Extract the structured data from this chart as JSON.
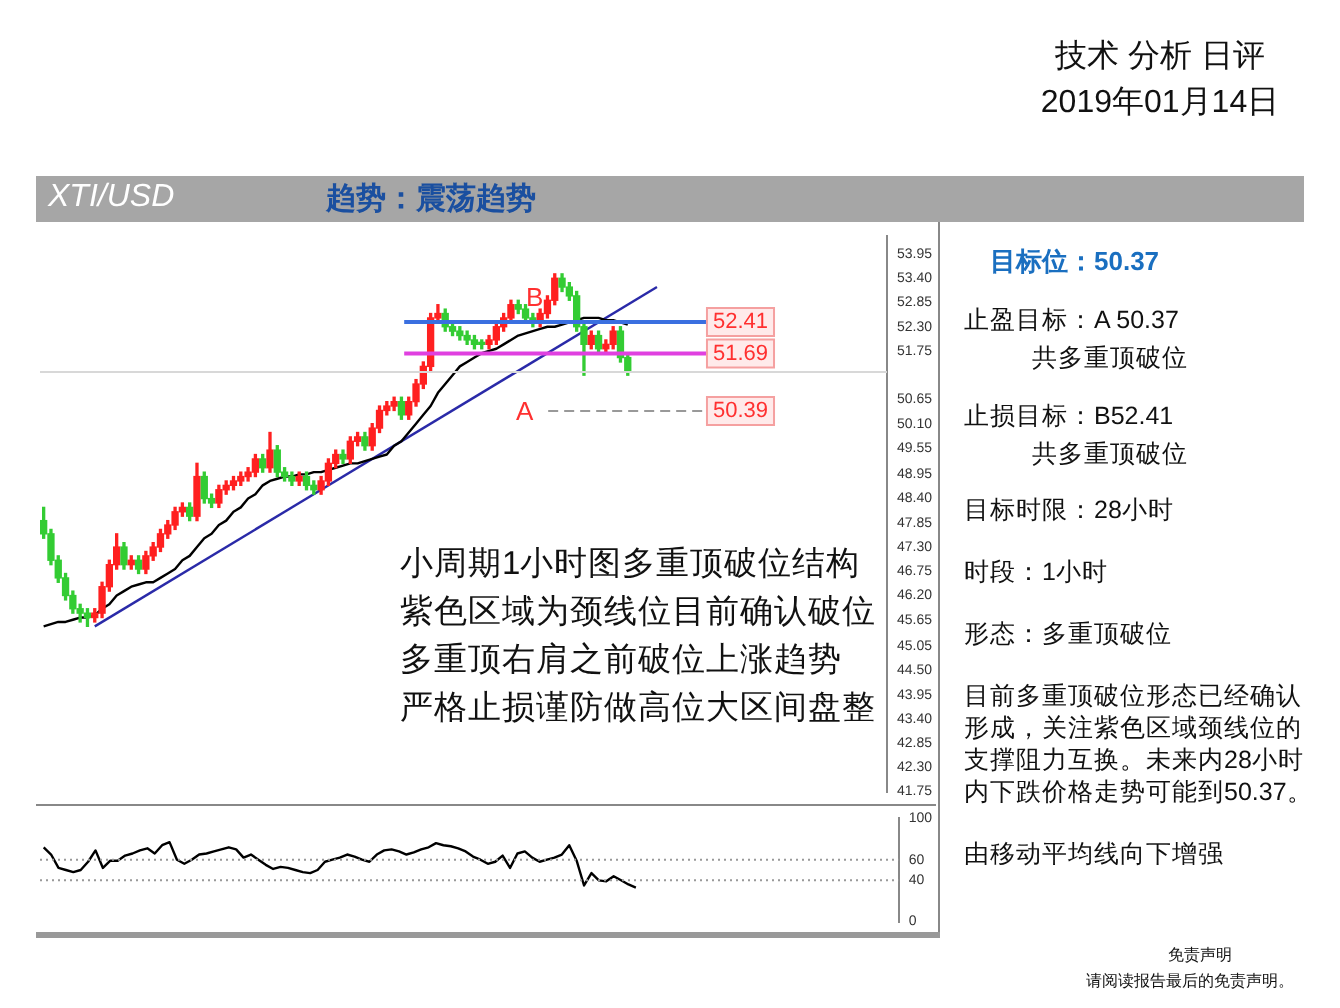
{
  "chart_data": [
    {
      "type": "candlestick",
      "title": "XTI/USD",
      "subtitle": "趋势：震荡趋势",
      "categories": [
        null,
        null,
        null,
        null,
        null,
        null,
        null,
        null,
        null,
        null,
        null,
        null,
        null,
        null,
        null,
        null,
        null,
        null,
        null,
        null,
        null,
        null,
        null,
        null,
        null,
        null,
        null,
        null,
        null,
        null,
        null,
        null,
        null,
        null,
        null,
        null,
        null,
        null,
        null,
        null,
        null,
        null,
        null,
        null,
        null,
        null,
        null,
        null,
        null,
        null,
        null,
        null,
        null,
        null,
        null,
        null,
        null,
        null,
        null,
        null,
        null,
        null,
        null,
        null,
        null,
        null,
        null,
        null,
        null,
        null,
        null,
        null,
        null,
        null,
        null,
        null,
        null,
        null,
        null,
        null,
        null,
        null,
        null,
        null,
        null,
        null,
        null,
        null,
        null,
        null,
        null,
        null,
        null,
        null,
        null,
        null,
        null,
        null,
        null,
        null,
        null,
        null,
        null,
        null,
        null,
        null,
        null,
        null,
        null,
        null,
        null,
        null,
        null,
        null,
        null,
        null
      ],
      "ohlc": [
        [
          47.9,
          48.2,
          47.5,
          47.6
        ],
        [
          47.6,
          47.7,
          46.9,
          47.0
        ],
        [
          47.0,
          47.1,
          46.5,
          46.6
        ],
        [
          46.6,
          46.7,
          46.1,
          46.2
        ],
        [
          46.2,
          46.3,
          45.8,
          45.9
        ],
        [
          45.9,
          46.0,
          45.6,
          45.8
        ],
        [
          45.8,
          45.9,
          45.5,
          45.7
        ],
        [
          45.7,
          45.9,
          45.6,
          45.8
        ],
        [
          45.8,
          46.5,
          45.7,
          46.4
        ],
        [
          46.4,
          47.0,
          46.3,
          46.9
        ],
        [
          46.9,
          47.6,
          46.8,
          47.3
        ],
        [
          47.3,
          47.4,
          46.8,
          46.9
        ],
        [
          46.9,
          47.1,
          46.8,
          47.0
        ],
        [
          47.0,
          47.1,
          46.7,
          46.8
        ],
        [
          46.8,
          47.2,
          46.7,
          47.1
        ],
        [
          47.1,
          47.4,
          47.0,
          47.3
        ],
        [
          47.3,
          47.7,
          47.2,
          47.6
        ],
        [
          47.6,
          47.9,
          47.5,
          47.8
        ],
        [
          47.8,
          48.2,
          47.7,
          48.1
        ],
        [
          48.1,
          48.3,
          48.0,
          48.2
        ],
        [
          48.2,
          48.3,
          47.9,
          48.0
        ],
        [
          48.0,
          49.2,
          47.9,
          48.9
        ],
        [
          48.9,
          49.0,
          48.3,
          48.4
        ],
        [
          48.4,
          48.5,
          48.2,
          48.3
        ],
        [
          48.3,
          48.7,
          48.2,
          48.6
        ],
        [
          48.6,
          48.8,
          48.5,
          48.7
        ],
        [
          48.7,
          48.9,
          48.6,
          48.8
        ],
        [
          48.8,
          49.0,
          48.7,
          48.9
        ],
        [
          48.9,
          49.1,
          48.8,
          49.0
        ],
        [
          49.0,
          49.4,
          48.9,
          49.3
        ],
        [
          49.3,
          49.4,
          49.0,
          49.1
        ],
        [
          49.1,
          49.9,
          49.0,
          49.5
        ],
        [
          49.5,
          49.6,
          48.9,
          49.0
        ],
        [
          49.0,
          49.1,
          48.8,
          48.9
        ],
        [
          48.9,
          49.0,
          48.7,
          48.8
        ],
        [
          48.8,
          49.0,
          48.7,
          48.9
        ],
        [
          48.9,
          49.0,
          48.6,
          48.7
        ],
        [
          48.7,
          48.8,
          48.5,
          48.6
        ],
        [
          48.6,
          48.9,
          48.5,
          48.8
        ],
        [
          48.8,
          49.3,
          48.7,
          49.2
        ],
        [
          49.2,
          49.5,
          49.1,
          49.4
        ],
        [
          49.4,
          49.5,
          49.2,
          49.3
        ],
        [
          49.3,
          49.8,
          49.2,
          49.7
        ],
        [
          49.7,
          49.9,
          49.6,
          49.8
        ],
        [
          49.8,
          49.9,
          49.5,
          49.6
        ],
        [
          49.6,
          50.1,
          49.5,
          50.0
        ],
        [
          50.0,
          50.5,
          49.9,
          50.4
        ],
        [
          50.4,
          50.6,
          50.3,
          50.5
        ],
        [
          50.5,
          50.7,
          50.4,
          50.6
        ],
        [
          50.6,
          50.7,
          50.2,
          50.3
        ],
        [
          50.3,
          50.7,
          50.2,
          50.6
        ],
        [
          50.6,
          51.1,
          50.5,
          51.0
        ],
        [
          51.0,
          51.5,
          50.9,
          51.4
        ],
        [
          51.4,
          52.6,
          51.3,
          52.5
        ],
        [
          52.5,
          52.8,
          52.4,
          52.6
        ],
        [
          52.6,
          52.7,
          52.2,
          52.3
        ],
        [
          52.3,
          52.4,
          52.1,
          52.2
        ],
        [
          52.2,
          52.3,
          52.0,
          52.1
        ],
        [
          52.1,
          52.2,
          51.9,
          52.0
        ],
        [
          52.0,
          52.1,
          51.8,
          51.9
        ],
        [
          51.9,
          52.0,
          51.8,
          51.9
        ],
        [
          51.9,
          52.1,
          51.8,
          52.0
        ],
        [
          52.0,
          52.4,
          51.9,
          52.3
        ],
        [
          52.3,
          52.6,
          52.2,
          52.5
        ],
        [
          52.5,
          52.9,
          52.4,
          52.8
        ],
        [
          52.8,
          52.9,
          52.6,
          52.7
        ],
        [
          52.7,
          52.8,
          52.4,
          52.5
        ],
        [
          52.5,
          52.6,
          52.3,
          52.4
        ],
        [
          52.4,
          52.7,
          52.3,
          52.6
        ],
        [
          52.6,
          53.0,
          52.5,
          52.9
        ],
        [
          52.9,
          53.5,
          52.8,
          53.4
        ],
        [
          53.4,
          53.5,
          53.1,
          53.2
        ],
        [
          53.2,
          53.3,
          52.9,
          53.0
        ],
        [
          53.0,
          53.1,
          52.2,
          52.3
        ],
        [
          52.3,
          52.4,
          51.2,
          51.9
        ],
        [
          51.9,
          52.2,
          51.8,
          52.1
        ],
        [
          52.1,
          52.2,
          51.7,
          51.8
        ],
        [
          51.8,
          52.0,
          51.7,
          51.9
        ],
        [
          51.9,
          52.3,
          51.8,
          52.2
        ],
        [
          52.2,
          52.3,
          51.5,
          51.6
        ],
        [
          51.6,
          51.7,
          51.2,
          51.3
        ],
        null,
        null,
        null,
        null,
        null,
        null,
        null,
        null,
        null,
        null,
        null,
        null,
        null,
        null,
        null,
        null,
        null,
        null,
        null,
        null,
        null,
        null,
        null,
        null,
        null,
        null,
        null,
        null,
        null,
        null,
        null,
        null,
        null,
        null,
        null
      ],
      "colors": [
        "#33cc33",
        "#33cc33",
        "#33cc33",
        "#33cc33",
        "#33cc33",
        "#33cc33",
        "#33cc33",
        "#ff2020",
        "#ff2020",
        "#ff2020",
        "#ff2020",
        "#33cc33",
        "#ff2020",
        "#33cc33",
        "#ff2020",
        "#ff2020",
        "#ff2020",
        "#ff2020",
        "#ff2020",
        "#ff2020",
        "#33cc33",
        "#ff2020",
        "#33cc33",
        "#33cc33",
        "#ff2020",
        "#ff2020",
        "#ff2020",
        "#ff2020",
        "#ff2020",
        "#ff2020",
        "#33cc33",
        "#ff2020",
        "#33cc33",
        "#33cc33",
        "#33cc33",
        "#ff2020",
        "#33cc33",
        "#33cc33",
        "#ff2020",
        "#ff2020",
        "#ff2020",
        "#33cc33",
        "#ff2020",
        "#ff2020",
        "#33cc33",
        "#ff2020",
        "#ff2020",
        "#ff2020",
        "#ff2020",
        "#33cc33",
        "#ff2020",
        "#ff2020",
        "#ff2020",
        "#ff2020",
        "#ff2020",
        "#33cc33",
        "#33cc33",
        "#33cc33",
        "#33cc33",
        "#33cc33",
        "#33cc33",
        "#ff2020",
        "#ff2020",
        "#ff2020",
        "#ff2020",
        "#33cc33",
        "#33cc33",
        "#33cc33",
        "#ff2020",
        "#ff2020",
        "#ff2020",
        "#33cc33",
        "#33cc33",
        "#33cc33",
        "#33cc33",
        "#ff2020",
        "#33cc33",
        "#ff2020",
        "#ff2020",
        "#33cc33",
        "#33cc33",
        null,
        null,
        null,
        null,
        null,
        null,
        null,
        null,
        null,
        null,
        null,
        null,
        null,
        null,
        null,
        null,
        null,
        null,
        null,
        null,
        null,
        null,
        null,
        null,
        null,
        null,
        null,
        null,
        null,
        null,
        null,
        null,
        null,
        null,
        null
      ],
      "series": [
        {
          "type": "line",
          "color": "#000000",
          "values": [
            45.5,
            45.55,
            45.6,
            45.6,
            45.65,
            45.7,
            45.7,
            45.75,
            45.9,
            46.0,
            46.2,
            46.3,
            46.4,
            46.45,
            46.5,
            46.5,
            46.6,
            46.7,
            46.8,
            47.0,
            47.1,
            47.3,
            47.5,
            47.6,
            47.8,
            47.9,
            48.1,
            48.2,
            48.4,
            48.5,
            48.7,
            48.8,
            48.85,
            48.9,
            48.9,
            48.95,
            48.95,
            49.0,
            49.0,
            49.05,
            49.1,
            49.15,
            49.2,
            49.2,
            49.25,
            49.3,
            49.35,
            49.4,
            49.6,
            49.7,
            49.9,
            50.1,
            50.3,
            50.5,
            50.8,
            51.0,
            51.2,
            51.4,
            51.5,
            51.6,
            51.7,
            51.75,
            51.8,
            51.9,
            52.0,
            52.1,
            52.15,
            52.2,
            52.25,
            52.3,
            52.3,
            52.35,
            52.4,
            52.45,
            52.5,
            52.5,
            52.5,
            52.45,
            52.45,
            52.4,
            52.35,
            null,
            null,
            null,
            null,
            null,
            null,
            null,
            null,
            null,
            null,
            null,
            null,
            null,
            null,
            null,
            null,
            null,
            null,
            null,
            null,
            null,
            null,
            null,
            null,
            null,
            null,
            null,
            null,
            null,
            null,
            null,
            null,
            null,
            null,
            null
          ]
        },
        {
          "type": "line",
          "color": "#2a2aa8",
          "values": [
            null,
            null,
            null,
            null,
            null,
            null,
            null,
            45.5,
            null,
            null,
            null,
            null,
            null,
            null,
            null,
            null,
            null,
            null,
            null,
            null,
            null,
            null,
            null,
            null,
            null,
            null,
            null,
            null,
            null,
            null,
            null,
            null,
            null,
            null,
            null,
            null,
            null,
            null,
            null,
            null,
            null,
            null,
            null,
            null,
            null,
            null,
            null,
            null,
            null,
            null,
            null,
            null,
            null,
            null,
            null,
            null,
            null,
            null,
            null,
            null,
            null,
            null,
            null,
            null,
            null,
            null,
            null,
            null,
            null,
            null,
            null,
            null,
            null,
            null,
            null,
            null,
            null,
            null,
            null,
            null,
            null,
            null,
            null,
            null,
            53.2,
            null,
            null,
            null,
            null,
            null,
            null,
            null,
            null,
            null,
            null,
            null,
            null,
            null,
            null,
            null,
            null,
            null,
            null,
            null,
            null,
            null,
            null,
            null,
            null,
            null,
            null,
            null,
            null,
            null,
            null,
            null
          ]
        }
      ],
      "ylim": [
        41.75,
        54.35
      ],
      "yticks": [
        53.95,
        {
          "value": 53.4,
          "label": "53.40"
        },
        52.85,
        {
          "value": 52.3,
          "label": "52.30"
        },
        51.75,
        50.65,
        {
          "value": 50.1,
          "label": "50.10"
        },
        49.55,
        48.95,
        {
          "value": 48.4,
          "label": "48.40"
        },
        47.85,
        {
          "value": 47.3,
          "label": "47.30"
        },
        46.75,
        {
          "value": 46.2,
          "label": "46.20"
        },
        45.65,
        45.05,
        {
          "value": 44.5,
          "label": "44.50"
        },
        43.95,
        {
          "value": 43.4,
          "label": "43.40"
        },
        42.85,
        {
          "value": 42.3,
          "label": "42.30"
        },
        41.75
      ],
      "ref_lines": [
        {
          "axis": "y",
          "value": 52.41,
          "label": "52.41",
          "color": "#3a6fe0"
        },
        {
          "axis": "y",
          "value": 51.69,
          "label": "51.69",
          "color": "#e040e0"
        },
        {
          "axis": "y",
          "value": 50.39,
          "label": "50.39",
          "color": "#999999",
          "line_style": "dashed"
        },
        {
          "axis": "y",
          "value": 51.27,
          "color": "#d8d8d8"
        }
      ],
      "annotations": [
        "技术 分析 日评",
        "2019年01月14日",
        "小周期1小时图多重顶破位结构",
        "紫色区域为颈线位目前确认破位",
        "多重顶右肩之前破位上涨趋势",
        "严格止损谨防做高位大区间盘整",
        "免责声明",
        "请阅读报告最后的免责声明。",
        "A",
        "B"
      ]
    },
    {
      "type": "line",
      "categories": [
        null,
        null,
        null,
        null,
        null,
        null,
        null,
        null,
        null,
        null,
        null,
        null,
        null,
        null,
        null,
        null,
        null,
        null,
        null,
        null,
        null,
        null,
        null,
        null,
        null,
        null,
        null,
        null,
        null,
        null,
        null,
        null,
        null,
        null,
        null,
        null,
        null,
        null,
        null,
        null,
        null,
        null,
        null,
        null,
        null,
        null,
        null,
        null,
        null,
        null,
        null,
        null,
        null,
        null,
        null,
        null,
        null,
        null,
        null,
        null,
        null,
        null,
        null,
        null,
        null,
        null,
        null,
        null,
        null,
        null,
        null,
        null,
        null,
        null,
        null,
        null,
        null,
        null,
        null,
        null,
        null,
        null,
        null,
        null,
        null,
        null,
        null,
        null,
        null,
        null,
        null,
        null,
        null,
        null,
        null,
        null,
        null,
        null,
        null,
        null,
        null,
        null,
        null,
        null,
        null,
        null,
        null,
        null,
        null,
        null,
        null,
        null,
        null,
        null,
        null,
        null
      ],
      "series": [
        {
          "color": "#000000",
          "values": [
            72,
            65,
            52,
            50,
            48,
            50,
            58,
            69,
            52,
            59,
            59,
            64,
            66,
            69,
            71,
            66,
            74,
            77,
            60,
            56,
            60,
            65,
            66,
            68,
            70,
            72,
            70,
            62,
            65,
            60,
            55,
            51,
            53,
            52,
            50,
            48,
            47,
            50,
            58,
            60,
            62,
            65,
            63,
            60,
            58,
            65,
            69,
            70,
            68,
            65,
            67,
            70,
            72,
            76,
            74,
            73,
            71,
            68,
            63,
            60,
            56,
            58,
            64,
            52,
            66,
            68,
            62,
            58,
            60,
            62,
            65,
            74,
            59,
            35,
            47,
            40,
            39,
            44,
            40,
            36,
            33,
            null,
            null,
            null,
            null,
            null,
            null,
            null,
            null,
            null,
            null,
            null,
            null,
            null,
            null,
            null,
            null,
            null,
            null,
            null,
            null,
            null,
            null,
            null,
            null,
            null,
            null,
            null,
            null,
            null,
            null,
            null,
            null,
            null,
            null,
            null
          ]
        }
      ],
      "ylim": [
        0,
        100
      ],
      "yticks": [
        0,
        40,
        60,
        100
      ],
      "ref_lines": [
        {
          "axis": "y",
          "value": 60,
          "color": "#999999",
          "line_style": "dotted"
        },
        {
          "axis": "y",
          "value": 40,
          "color": "#999999",
          "line_style": "dotted"
        }
      ]
    },
    {
      "type": "other",
      "title": "目标位：50.37",
      "annotations": [
        "止盈目标：A 50.37",
        "共多重顶破位",
        "止损目标：B52.41",
        "共多重顶破位",
        "目标时限：28小时",
        "时段：1小时",
        "形态：多重顶破位",
        "目前多重顶破位形态已经确认形成，关注紫色区域颈线位的支撑阻力互换。未来内28小时内下跌价格走势可能到50.37。",
        "由移动平均线向下增强"
      ]
    }
  ]
}
